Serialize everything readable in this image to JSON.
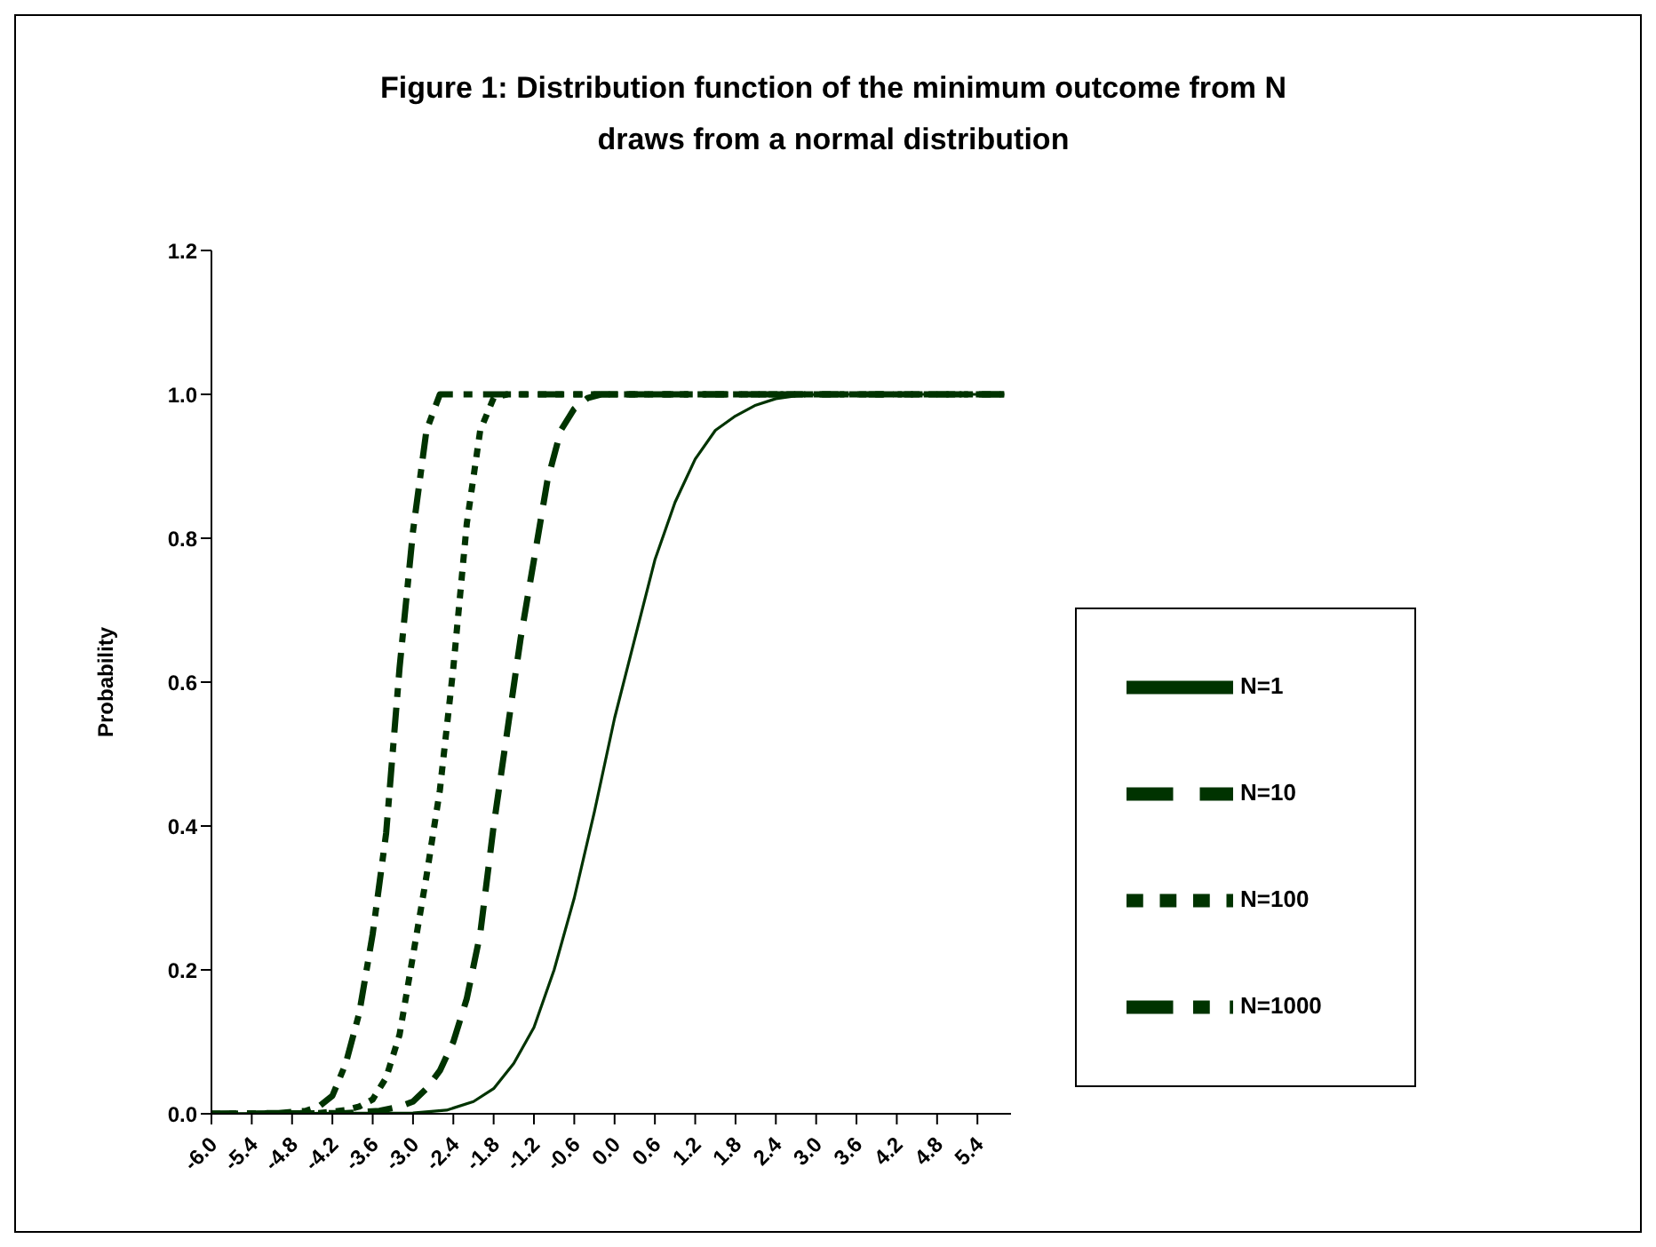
{
  "chart_data": {
    "type": "line",
    "title": "Figure 1:  Distribution function of the minimum outcome from N draws from a normal distribution",
    "ylabel": "Probability",
    "xlim": [
      -6.0,
      5.9
    ],
    "xticks": [
      {
        "value": -6.0,
        "label": "-6.0"
      },
      {
        "value": -5.4,
        "label": "-5.4"
      },
      {
        "value": -4.8,
        "label": "-4.8"
      },
      {
        "value": -4.2,
        "label": "-4.2"
      },
      {
        "value": -3.6,
        "label": "-3.6"
      },
      {
        "value": -3.0,
        "label": "-3.0"
      },
      {
        "value": -2.4,
        "label": "-2.4"
      },
      {
        "value": -1.8,
        "label": "-1.8"
      },
      {
        "value": -1.2,
        "label": "-1.2"
      },
      {
        "value": -0.6,
        "label": "-0.6"
      },
      {
        "value": 0,
        "label": "0.0"
      },
      {
        "value": 0.6,
        "label": "0.6"
      },
      {
        "value": 1.2,
        "label": "1.2"
      },
      {
        "value": 1.8,
        "label": "1.8"
      },
      {
        "value": 2.4,
        "label": "2.4"
      },
      {
        "value": 3.0,
        "label": "3.0"
      },
      {
        "value": 3.6,
        "label": "3.6"
      },
      {
        "value": 4.2,
        "label": "4.2"
      },
      {
        "value": 4.8,
        "label": "4.8"
      },
      {
        "value": 5.4,
        "label": "5.4"
      }
    ],
    "ylim": [
      0,
      1.2
    ],
    "yticks": [
      {
        "value": 0,
        "label": "0.0"
      },
      {
        "value": 0.2,
        "label": "0.2"
      },
      {
        "value": 0.4,
        "label": "0.4"
      },
      {
        "value": 0.6,
        "label": "0.6"
      },
      {
        "value": 0.8,
        "label": "0.8"
      },
      {
        "value": 1.0,
        "label": "1.0"
      },
      {
        "value": 1.2,
        "label": "1.2"
      }
    ],
    "grid": false,
    "legend": "right",
    "marker": "none",
    "series": [
      {
        "name": "N=1",
        "color": "#003300",
        "line_style": "solid",
        "x": [
          -6.0,
          -3.0,
          -2.5,
          -2.1,
          -1.8,
          -1.5,
          -1.2,
          -0.9,
          -0.6,
          -0.3,
          0,
          0.3,
          0.6,
          0.9,
          1.2,
          1.5,
          1.8,
          2.1,
          2.4,
          2.7,
          3.0,
          5.8
        ],
        "values": [
          0,
          0.001,
          0.005,
          0.017,
          0.035,
          0.07,
          0.12,
          0.2,
          0.3,
          0.42,
          0.55,
          0.66,
          0.77,
          0.85,
          0.91,
          0.95,
          0.97,
          0.985,
          0.994,
          0.998,
          1,
          1
        ]
      },
      {
        "name": "N=10",
        "color": "#003300",
        "line_style": "dashed",
        "x": [
          -6.0,
          -4.0,
          -3.5,
          -3.2,
          -3.0,
          -2.8,
          -2.6,
          -2.4,
          -2.2,
          -2.0,
          -1.8,
          -1.6,
          -1.4,
          -1.2,
          -1.0,
          -0.8,
          -0.6,
          -0.4,
          -0.2,
          5.8
        ],
        "values": [
          0,
          0.001,
          0.004,
          0.01,
          0.017,
          0.035,
          0.06,
          0.1,
          0.16,
          0.25,
          0.4,
          0.53,
          0.66,
          0.77,
          0.88,
          0.95,
          0.98,
          0.995,
          1,
          1
        ]
      },
      {
        "name": "N=100",
        "color": "#003300",
        "line_style": "dotted",
        "x": [
          -6.0,
          -4.4,
          -4.0,
          -3.8,
          -3.6,
          -3.4,
          -3.2,
          -3.0,
          -2.8,
          -2.6,
          -2.4,
          -2.2,
          -2.0,
          -1.8,
          -1.6,
          5.8
        ],
        "values": [
          0,
          0.001,
          0.005,
          0.01,
          0.02,
          0.05,
          0.11,
          0.22,
          0.33,
          0.45,
          0.62,
          0.82,
          0.95,
          0.995,
          1,
          1
        ]
      },
      {
        "name": "N=1000",
        "color": "#003300",
        "line_style": "dashdot",
        "x": [
          -6.0,
          -5.0,
          -4.6,
          -4.4,
          -4.2,
          -4.0,
          -3.8,
          -3.6,
          -3.4,
          -3.2,
          -3.0,
          -2.8,
          -2.6,
          5.8
        ],
        "values": [
          0,
          0.001,
          0.004,
          0.01,
          0.025,
          0.07,
          0.14,
          0.25,
          0.39,
          0.62,
          0.81,
          0.95,
          1,
          1
        ]
      }
    ]
  }
}
